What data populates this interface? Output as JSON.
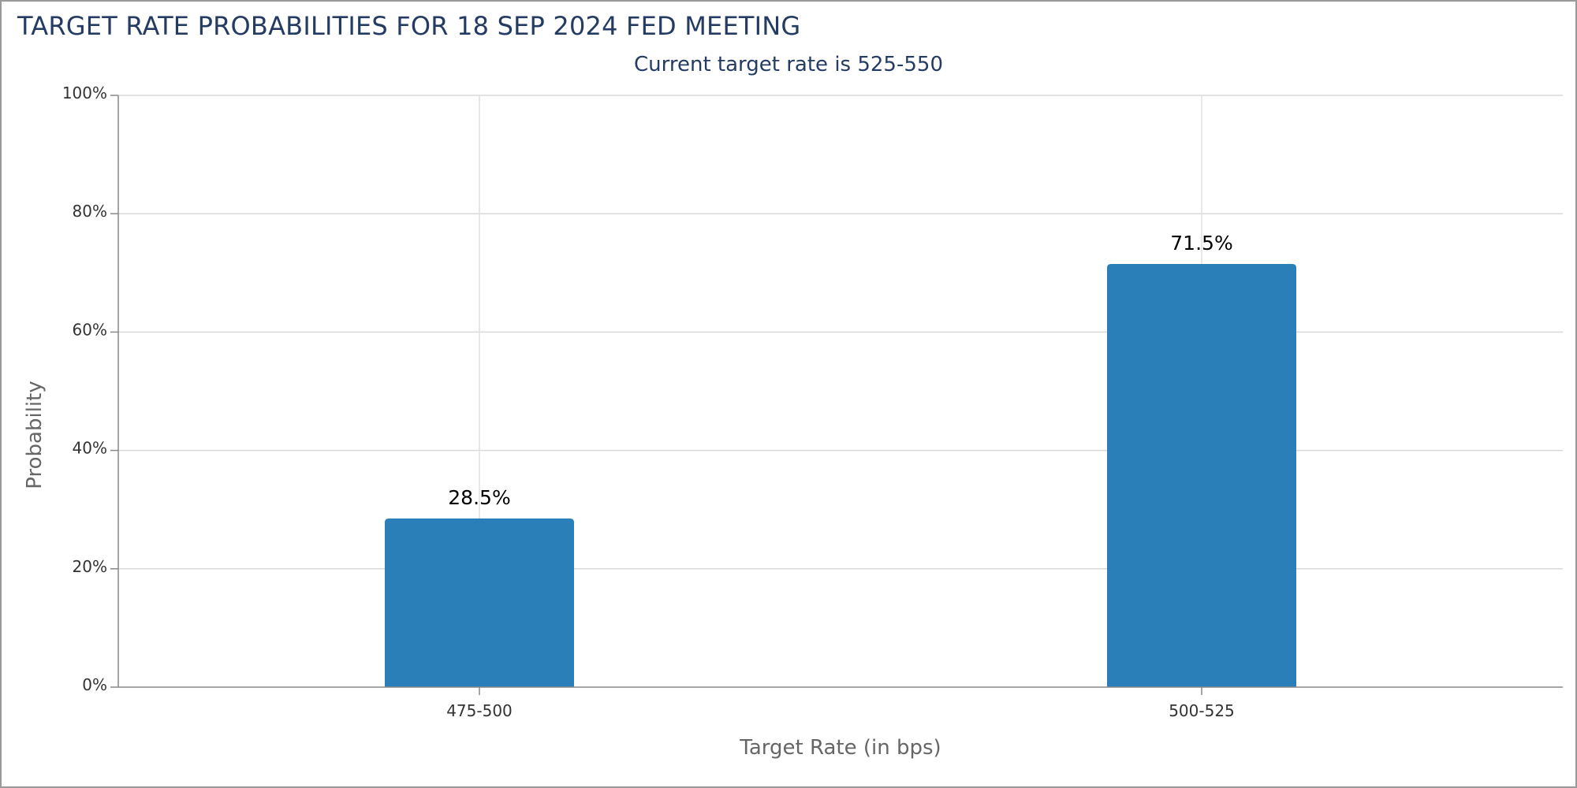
{
  "header": {
    "title": "TARGET RATE PROBABILITIES FOR 18 SEP 2024 FED MEETING"
  },
  "chart_data": {
    "type": "bar",
    "title": "TARGET RATE PROBABILITIES FOR 18 SEP 2024 FED MEETING",
    "subtitle": "Current target rate is 525-550",
    "categories": [
      "475-500",
      "500-525"
    ],
    "values": [
      28.5,
      71.5
    ],
    "value_labels": [
      "28.5%",
      "71.5%"
    ],
    "xlabel": "Target Rate (in bps)",
    "ylabel": "Probability",
    "ylim": [
      0,
      100
    ],
    "yticks": [
      0,
      20,
      40,
      60,
      80,
      100
    ],
    "ytick_labels": [
      "0%",
      "20%",
      "40%",
      "60%",
      "80%",
      "100%"
    ],
    "grid": true,
    "legend": "none",
    "bar_color": "#2a7fb8"
  }
}
